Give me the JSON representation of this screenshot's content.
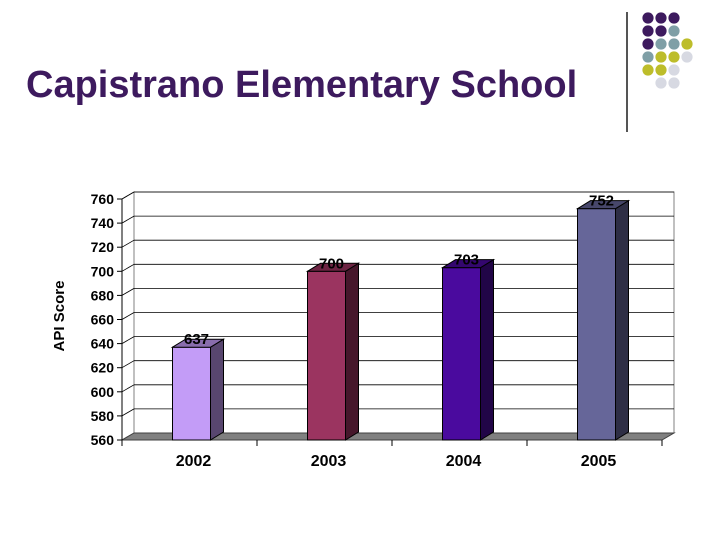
{
  "slide": {
    "title": "Capistrano Elementary School"
  },
  "decoration": {
    "dot_colors": {
      "purple": "#3d1a5e",
      "teal": "#7f9fa6",
      "olive": "#bdbd2a",
      "gray": "#d7d9e2"
    }
  },
  "chart_data": {
    "type": "bar",
    "style": "3d",
    "title": "",
    "xlabel": "",
    "ylabel": "API Score",
    "categories": [
      "2002",
      "2003",
      "2004",
      "2005"
    ],
    "values": [
      637,
      700,
      703,
      752
    ],
    "data_labels": [
      "637",
      "700",
      "703",
      "752"
    ],
    "bar_colors": [
      "#c39cf7",
      "#9b3460",
      "#4a0a9e",
      "#666699"
    ],
    "ylim": [
      560,
      760
    ],
    "yticks": [
      560,
      580,
      600,
      620,
      640,
      660,
      680,
      700,
      720,
      740,
      760
    ],
    "grid": true,
    "legend": "none"
  }
}
